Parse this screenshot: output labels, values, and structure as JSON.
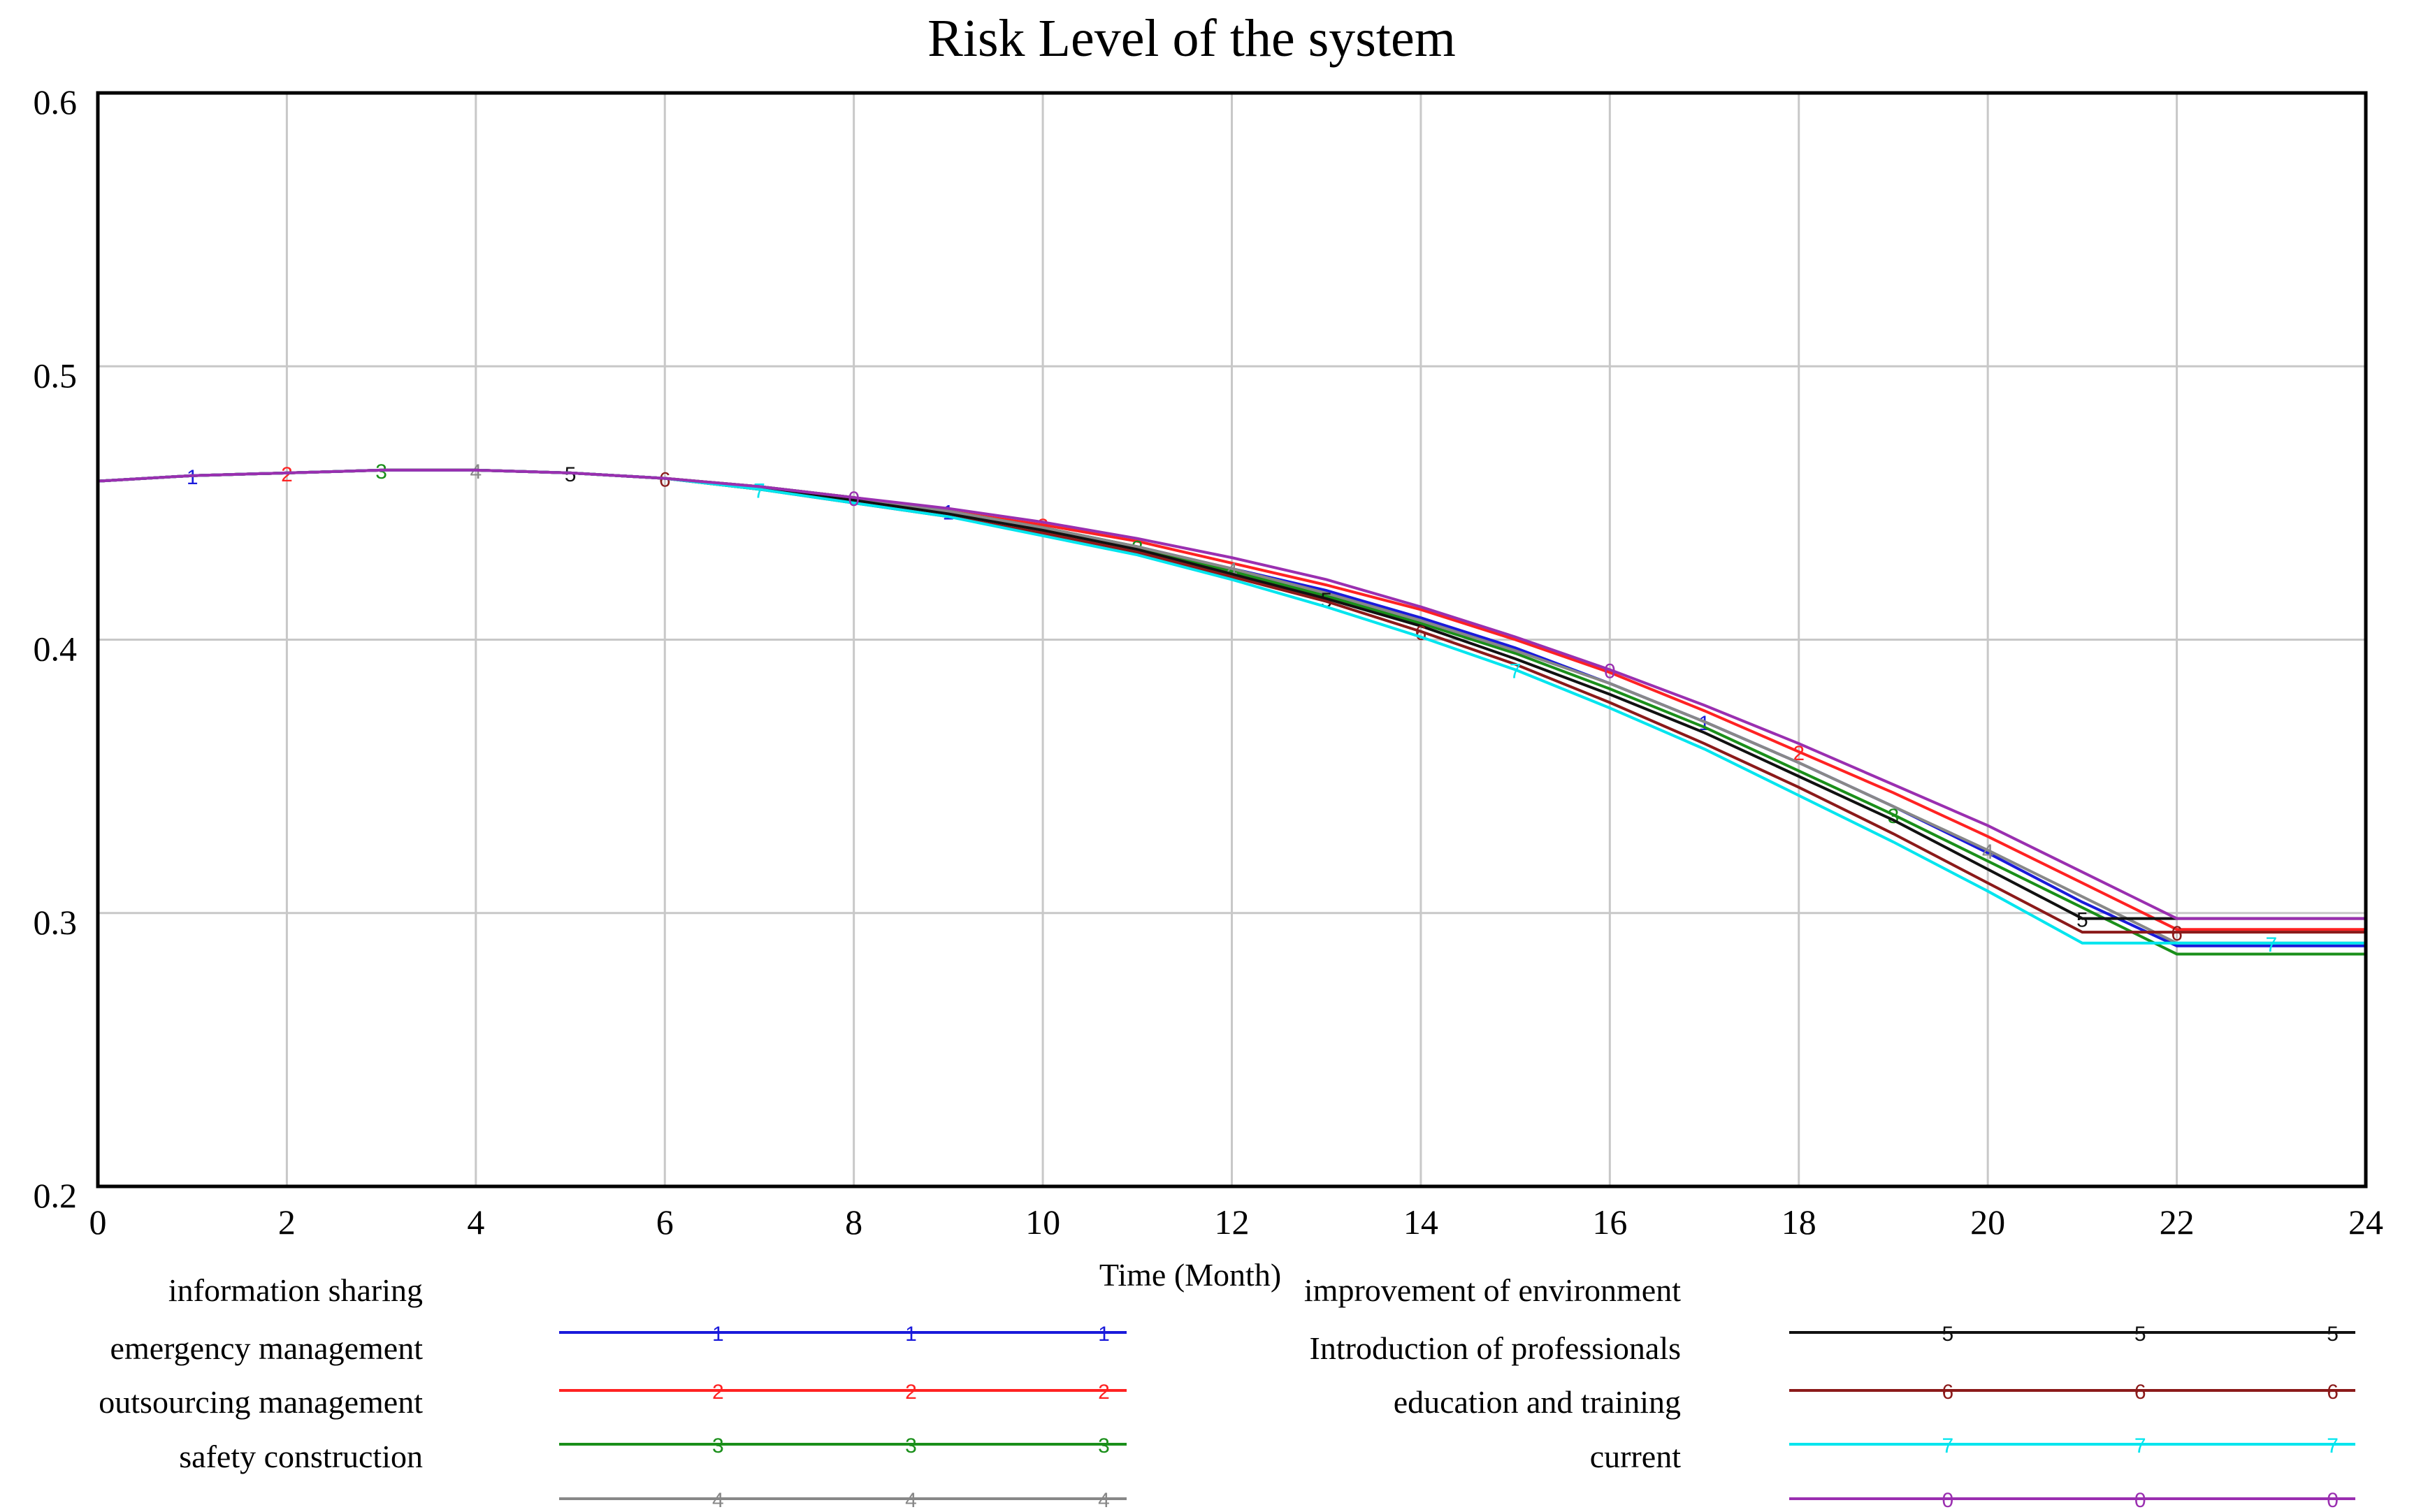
{
  "chart_data": {
    "type": "line",
    "title": "Risk Level of the system",
    "xlabel": "Time (Month)",
    "ylabel": "",
    "xlim": [
      0,
      24
    ],
    "ylim": [
      0.2,
      0.6
    ],
    "x_ticks": [
      "0",
      "2",
      "4",
      "6",
      "8",
      "10",
      "12",
      "14",
      "16",
      "18",
      "20",
      "22",
      "24"
    ],
    "y_ticks": [
      "0.2",
      "0.3",
      "0.4",
      "0.5",
      "0.6"
    ],
    "grid": true,
    "x": [
      0,
      1,
      2,
      3,
      4,
      5,
      6,
      7,
      8,
      9,
      10,
      11,
      12,
      13,
      14,
      15,
      16,
      17,
      18,
      19,
      20,
      21,
      22,
      23,
      24
    ],
    "series": [
      {
        "marker": "1",
        "name": "information sharing",
        "color": "#1a1adb",
        "values": [
          0.458,
          0.46,
          0.461,
          0.462,
          0.462,
          0.461,
          0.459,
          0.456,
          0.452,
          0.447,
          0.441,
          0.434,
          0.426,
          0.418,
          0.408,
          0.397,
          0.384,
          0.37,
          0.355,
          0.339,
          0.322,
          0.304,
          0.288,
          0.288,
          0.288
        ]
      },
      {
        "marker": "2",
        "name": "emergency management",
        "color": "#ff2222",
        "values": [
          0.458,
          0.46,
          0.461,
          0.462,
          0.462,
          0.461,
          0.459,
          0.456,
          0.452,
          0.447,
          0.442,
          0.436,
          0.428,
          0.42,
          0.411,
          0.4,
          0.388,
          0.374,
          0.359,
          0.344,
          0.328,
          0.311,
          0.294,
          0.294,
          0.294
        ]
      },
      {
        "marker": "3",
        "name": "outsourcing management",
        "color": "#1a8f1a",
        "values": [
          0.458,
          0.46,
          0.461,
          0.462,
          0.462,
          0.461,
          0.459,
          0.456,
          0.452,
          0.447,
          0.441,
          0.434,
          0.425,
          0.416,
          0.406,
          0.395,
          0.382,
          0.368,
          0.352,
          0.336,
          0.319,
          0.302,
          0.285,
          0.285,
          0.285
        ]
      },
      {
        "marker": "4",
        "name": "safety construction",
        "color": "#888888",
        "values": [
          0.458,
          0.46,
          0.461,
          0.462,
          0.462,
          0.461,
          0.459,
          0.456,
          0.452,
          0.447,
          0.441,
          0.434,
          0.426,
          0.417,
          0.407,
          0.396,
          0.384,
          0.37,
          0.355,
          0.339,
          0.323,
          0.306,
          0.289,
          0.289,
          0.289
        ]
      },
      {
        "marker": "5",
        "name": "improvement of environment",
        "color": "#111111",
        "values": [
          0.458,
          0.46,
          0.461,
          0.462,
          0.462,
          0.461,
          0.459,
          0.455,
          0.451,
          0.446,
          0.44,
          0.433,
          0.424,
          0.415,
          0.405,
          0.393,
          0.38,
          0.366,
          0.35,
          0.334,
          0.316,
          0.298,
          0.298,
          0.298,
          0.298
        ]
      },
      {
        "marker": "6",
        "name": "Introduction of professionals",
        "color": "#8b1a1a",
        "values": [
          0.458,
          0.46,
          0.461,
          0.462,
          0.462,
          0.461,
          0.459,
          0.455,
          0.45,
          0.445,
          0.439,
          0.432,
          0.423,
          0.414,
          0.403,
          0.391,
          0.377,
          0.362,
          0.346,
          0.329,
          0.311,
          0.293,
          0.293,
          0.293,
          0.293
        ]
      },
      {
        "marker": "7",
        "name": "education and training",
        "color": "#00e5ee",
        "values": [
          0.458,
          0.46,
          0.461,
          0.462,
          0.462,
          0.461,
          0.459,
          0.455,
          0.45,
          0.445,
          0.438,
          0.431,
          0.422,
          0.412,
          0.401,
          0.389,
          0.375,
          0.36,
          0.343,
          0.326,
          0.308,
          0.289,
          0.289,
          0.289,
          0.289
        ]
      },
      {
        "marker": "0",
        "name": "current",
        "color": "#9a2fb0",
        "values": [
          0.458,
          0.46,
          0.461,
          0.462,
          0.462,
          0.461,
          0.459,
          0.456,
          0.452,
          0.448,
          0.443,
          0.437,
          0.43,
          0.422,
          0.412,
          0.401,
          0.389,
          0.376,
          0.362,
          0.347,
          0.332,
          0.315,
          0.298,
          0.298,
          0.298
        ]
      }
    ],
    "legend_position": "bottom"
  }
}
